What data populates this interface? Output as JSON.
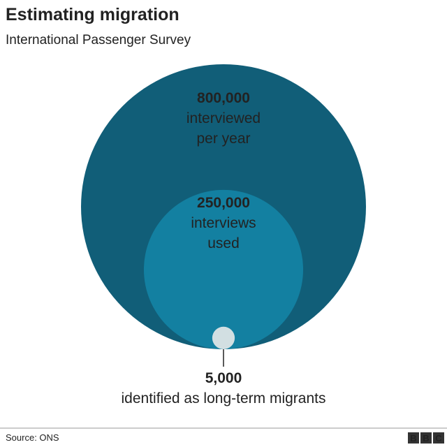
{
  "chart_data": {
    "type": "nested-circles",
    "title": "Estimating migration",
    "subtitle": "International Passenger Survey",
    "series": [
      {
        "value": 800000,
        "value_label": "800,000",
        "label": [
          "interviewed",
          "per year"
        ],
        "color": "#115e78"
      },
      {
        "value": 250000,
        "value_label": "250,000",
        "label": [
          "interviews",
          "used"
        ],
        "color": "#1380a1"
      },
      {
        "value": 5000,
        "value_label": "5,000",
        "label": [
          "identified as long-term migrants"
        ],
        "color": "#d2dfe2"
      }
    ]
  },
  "footer": {
    "source": "Source: ONS",
    "logo": [
      "B",
      "B",
      "C"
    ]
  }
}
